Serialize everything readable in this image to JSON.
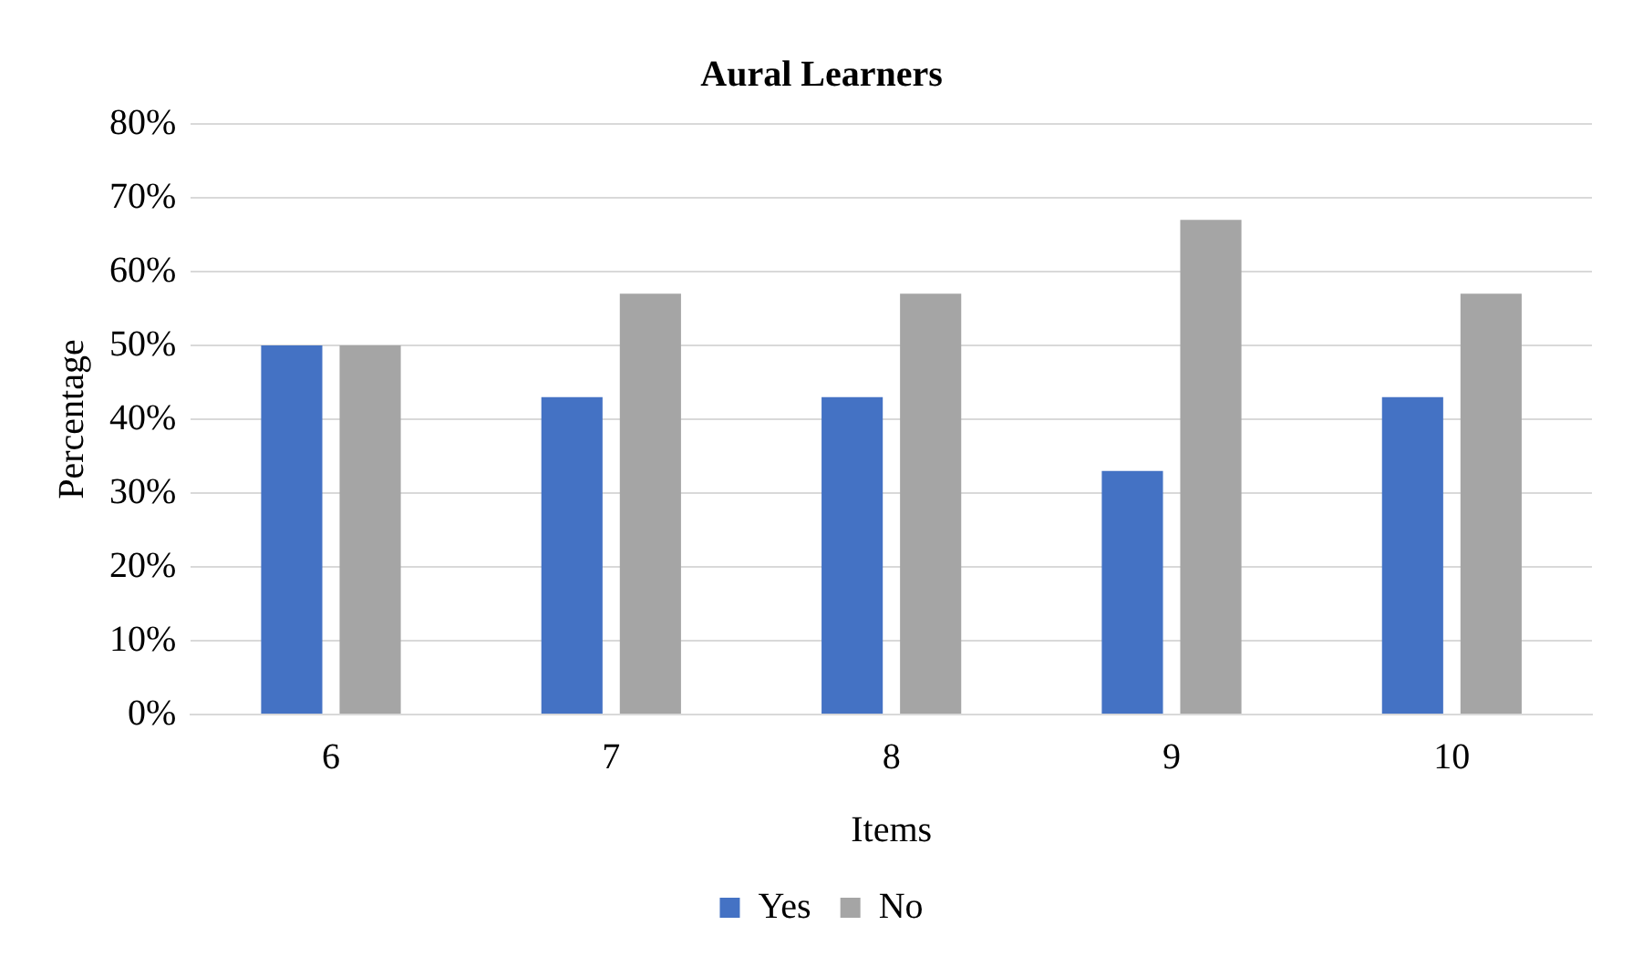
{
  "chart_data": {
    "type": "bar",
    "title": "Aural Learners",
    "xlabel": "Items",
    "ylabel": "Percentage",
    "categories": [
      "6",
      "7",
      "8",
      "9",
      "10"
    ],
    "series": [
      {
        "name": "Yes",
        "color": "#4472c4",
        "values": [
          50,
          43,
          43,
          33,
          43
        ]
      },
      {
        "name": "No",
        "color": "#a5a5a5",
        "values": [
          50,
          57,
          57,
          67,
          57
        ]
      }
    ],
    "ylim": [
      0,
      80
    ],
    "yticks": [
      {
        "value": 0,
        "label": "0%"
      },
      {
        "value": 10,
        "label": "10%"
      },
      {
        "value": 20,
        "label": "20%"
      },
      {
        "value": 30,
        "label": "30%"
      },
      {
        "value": 40,
        "label": "40%"
      },
      {
        "value": 50,
        "label": "50%"
      },
      {
        "value": 60,
        "label": "60%"
      },
      {
        "value": 70,
        "label": "70%"
      },
      {
        "value": 80,
        "label": "80%"
      }
    ],
    "grid": "y",
    "legend": "bottom"
  }
}
